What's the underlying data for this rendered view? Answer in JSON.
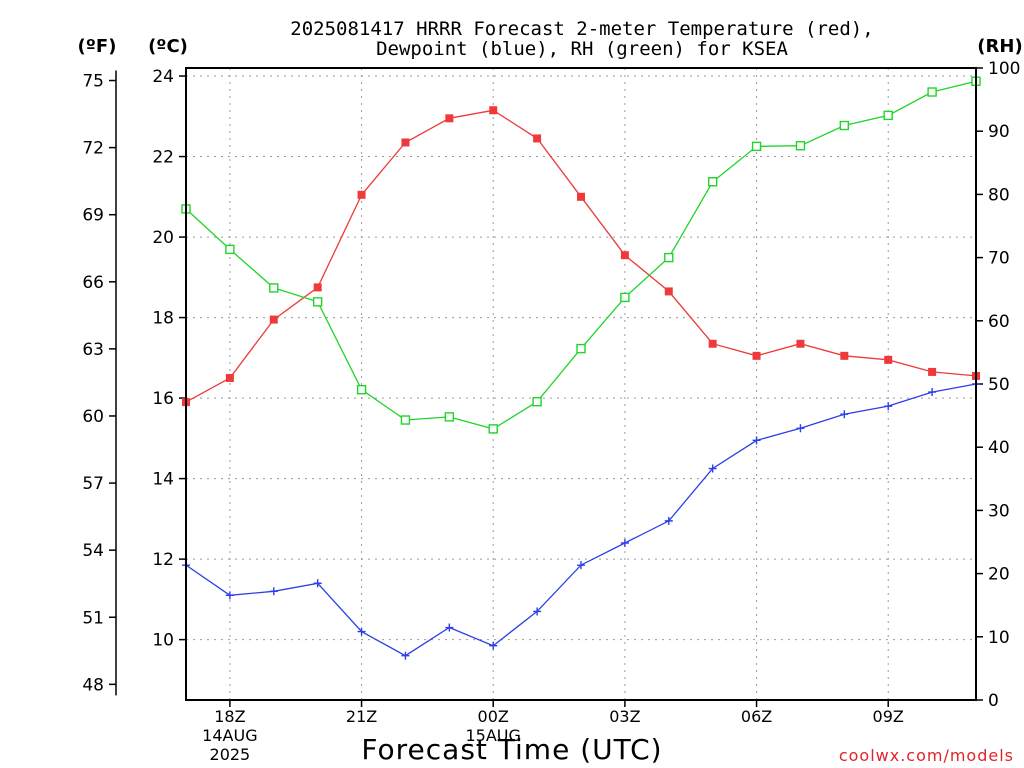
{
  "chart_data": {
    "type": "line",
    "title_lines": [
      "2025081417 HRRR Forecast 2-meter Temperature (red),",
      "Dewpoint (blue), RH (green) for KSEA"
    ],
    "xlabel": "Forecast Time (UTC)",
    "credit": "coolwx.com/models",
    "unit_labels": {
      "fahrenheit": "(ºF)",
      "celsius": "(ºC)",
      "rh": "(RH)"
    },
    "x_hours": [
      17,
      18,
      19,
      20,
      21,
      22,
      23,
      24,
      25,
      26,
      27,
      28,
      29,
      30,
      31,
      32,
      33,
      34,
      35
    ],
    "xlim": [
      17,
      35
    ],
    "x_ticks": [
      {
        "hour": 18,
        "lines": [
          "18Z",
          "14AUG",
          "2025"
        ]
      },
      {
        "hour": 21,
        "lines": [
          "21Z"
        ]
      },
      {
        "hour": 24,
        "lines": [
          "00Z",
          "15AUG"
        ]
      },
      {
        "hour": 27,
        "lines": [
          "03Z"
        ]
      },
      {
        "hour": 30,
        "lines": [
          "06Z"
        ]
      },
      {
        "hour": 33,
        "lines": [
          "09Z"
        ]
      }
    ],
    "celsius_axis": {
      "ylim": [
        8.5,
        24.2
      ],
      "ticks": [
        10,
        12,
        14,
        16,
        18,
        20,
        22,
        24
      ]
    },
    "fahrenheit_axis": {
      "ticks": [
        48,
        51,
        54,
        57,
        60,
        63,
        66,
        69,
        72,
        75
      ]
    },
    "rh_axis": {
      "ylim": [
        0,
        100
      ],
      "ticks": [
        0,
        10,
        20,
        30,
        40,
        50,
        60,
        70,
        80,
        90,
        100
      ]
    },
    "grid": true,
    "series": [
      {
        "name": "Temperature",
        "axis": "celsius",
        "color": "#ee3a3a",
        "marker": "filled-square",
        "values": [
          15.9,
          16.5,
          17.95,
          18.75,
          21.05,
          22.35,
          22.95,
          23.15,
          22.45,
          21.0,
          19.55,
          18.65,
          17.35,
          17.05,
          17.35,
          17.05,
          16.95,
          16.65,
          16.55
        ]
      },
      {
        "name": "Dewpoint",
        "axis": "celsius",
        "color": "#2b3fe8",
        "marker": "plus",
        "values": [
          11.85,
          11.1,
          11.2,
          11.4,
          10.2,
          9.6,
          10.3,
          9.85,
          10.7,
          11.85,
          12.4,
          12.95,
          14.25,
          14.95,
          15.25,
          15.6,
          15.8,
          16.15,
          16.35
        ]
      },
      {
        "name": "RH",
        "axis": "rh",
        "color": "#21d42b",
        "marker": "open-square",
        "values": [
          77.7,
          71.3,
          65.2,
          63.0,
          49.1,
          44.3,
          44.8,
          42.9,
          47.2,
          55.6,
          63.7,
          70.0,
          82.0,
          87.6,
          87.7,
          90.9,
          92.5,
          96.2,
          97.9
        ]
      }
    ]
  }
}
